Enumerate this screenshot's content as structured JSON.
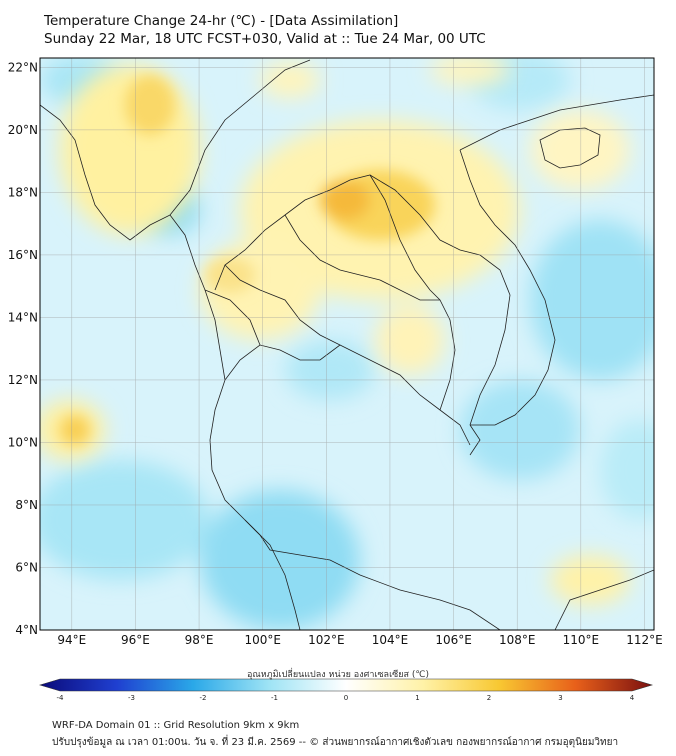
{
  "title": {
    "line1": "Temperature Change 24-hr (℃) - [Data Assimilation]",
    "line2": "Sunday 22 Mar, 18 UTC FCST+030, Valid at :: Tue 24 Mar, 00 UTC"
  },
  "map": {
    "lat_labels": [
      "22°N",
      "20°N",
      "18°N",
      "16°N",
      "14°N",
      "12°N",
      "10°N",
      "8°N",
      "6°N",
      "4°N"
    ],
    "lon_labels": [
      "94°E",
      "96°E",
      "98°E",
      "100°E",
      "102°E",
      "104°E",
      "106°E",
      "108°E",
      "110°E",
      "112°E"
    ],
    "lat_range": [
      4,
      22.3
    ],
    "lon_range": [
      93,
      112.3
    ],
    "grid": true
  },
  "colorbar": {
    "label": "อุณหภูมิเปลี่ยนแปลง หน่วย องศาเซลเซียส (℃)",
    "ticks": [
      "-4",
      "-3",
      "-2",
      "-1",
      "0",
      "1",
      "2",
      "3",
      "4"
    ],
    "min": -4,
    "max": 4,
    "colors": {
      "neg4": "#0b0b7a",
      "neg3": "#1f3fd0",
      "neg2": "#2aa8e8",
      "neg1": "#9fe4f5",
      "zero": "#ffffff",
      "pos1": "#fff2a8",
      "pos2": "#f8c832",
      "pos3": "#e8601a",
      "pos4": "#7a1010"
    }
  },
  "footer": {
    "line1": "WRF-DA Domain 01 :: Grid Resolution 9km x 9km",
    "line2": "ปรับปรุงข้อมูล ณ เวลา 01:00น. วัน จ. ที่ 23 มี.ค. 2569 -- © ส่วนพยากรณ์อากาศเชิงตัวเลข กองพยากรณ์อากาศ กรมอุตุนิยมวิทยา"
  }
}
